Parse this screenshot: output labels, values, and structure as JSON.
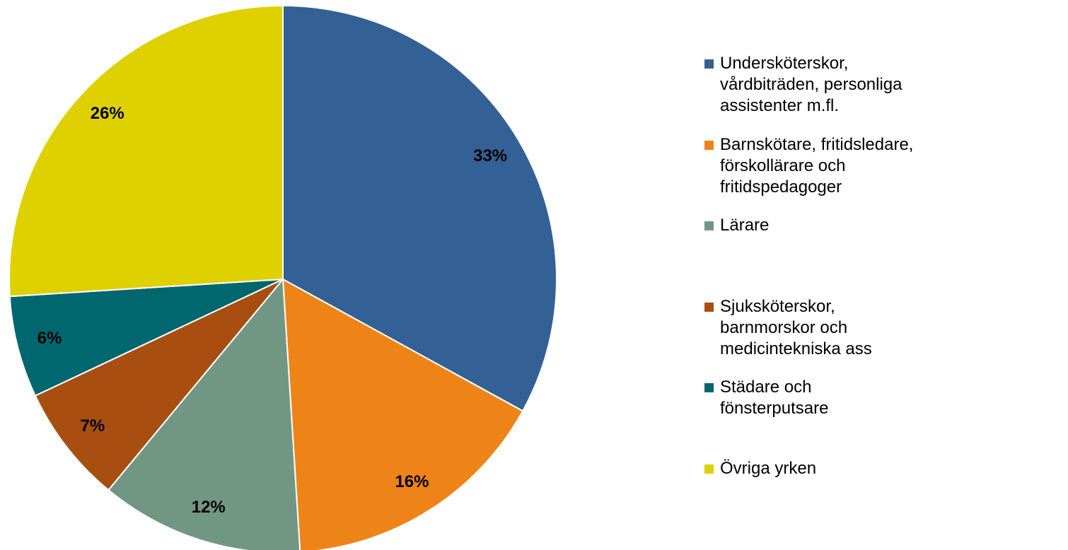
{
  "chart_data": {
    "type": "pie",
    "categories": [
      "Undersköterskor, vårdbiträden, personliga assistenter m.fl.",
      "Barnskötare, fritidsledare, förskollärare och fritidspedagoger",
      "Lärare",
      "Sjuksköterskor, barnmorskor och medicintekniska ass",
      "Städare och fönsterputsare",
      "Övriga yrken"
    ],
    "values": [
      33,
      16,
      12,
      7,
      6,
      26
    ],
    "value_labels": [
      "33%",
      "16%",
      "12%",
      "7%",
      "6%",
      "26%"
    ],
    "colors": [
      "#336195",
      "#ee8418",
      "#719784",
      "#a84e10",
      "#00676e",
      "#dfd000"
    ]
  }
}
